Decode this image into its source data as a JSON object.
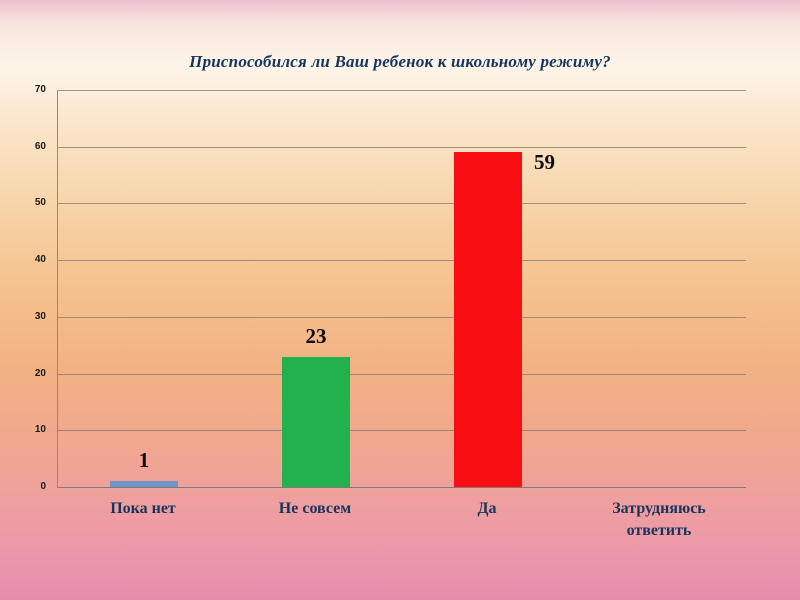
{
  "chart_data": {
    "type": "bar",
    "title": "Приспособился ли Ваш ребенок к школьному режиму?",
    "categories": [
      "Пока нет",
      "Не совсем",
      "Да",
      "Затрудняюсь ответить"
    ],
    "values": [
      1,
      23,
      59,
      0
    ],
    "data_labels": [
      "1",
      "23",
      "59",
      ""
    ],
    "label_positions": [
      "above",
      "above",
      "right",
      "none"
    ],
    "bar_colors": [
      "#7293c8",
      "#22b14c",
      "#f70d12",
      null
    ],
    "ylim": [
      0,
      70
    ],
    "ytick_step": 10,
    "grid": true,
    "legend": "none",
    "xlabel": "",
    "ylabel": ""
  }
}
